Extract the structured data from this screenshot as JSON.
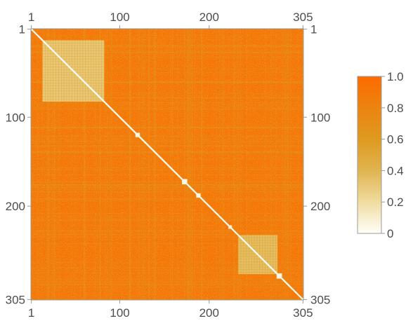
{
  "chart_data": {
    "type": "heatmap",
    "title": "",
    "matrix_size": 305,
    "ticks": [
      1,
      100,
      200,
      305
    ],
    "tick_labels": [
      "1",
      "100",
      "200",
      "305"
    ],
    "value_range": [
      0,
      1
    ],
    "colorbar": {
      "ticks": [
        0,
        0.2,
        0.4,
        0.6,
        0.8,
        1.0
      ],
      "labels": [
        "0",
        "0.2",
        "0.4",
        "0.6",
        "0.8",
        "1.0"
      ],
      "colors": [
        "#fffff8",
        "#f0dca0",
        "#e0b450",
        "#de9a20",
        "#ec8410",
        "#fd6a00"
      ]
    },
    "typical_offdiagonal_value": 0.9,
    "diagonal_value": 0,
    "low_value_blocks": [
      {
        "rows": [
          14,
          82
        ],
        "cols": [
          14,
          82
        ],
        "value": 0.15
      },
      {
        "rows": [
          233,
          276
        ],
        "cols": [
          233,
          276
        ],
        "value": 0.2
      }
    ],
    "diagonal_squares": [
      {
        "start": 118,
        "end": 122
      },
      {
        "start": 170,
        "end": 175
      },
      {
        "start": 186,
        "end": 190
      },
      {
        "start": 222,
        "end": 225
      },
      {
        "start": 276,
        "end": 281
      }
    ],
    "legend_placement": "right",
    "grid": false
  }
}
